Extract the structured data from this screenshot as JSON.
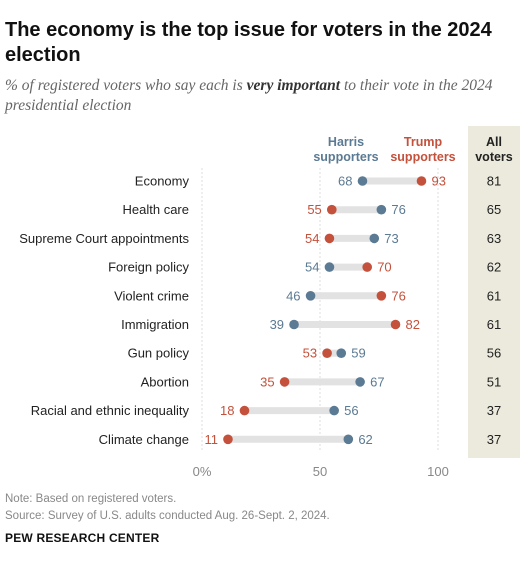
{
  "title": "The economy is the top issue for voters in the 2024 election",
  "subtitle": {
    "before": "% of registered voters who say each is ",
    "emphasis": "very important",
    "after": " to their vote in the 2024 presidential election"
  },
  "colors": {
    "harris": "#5b7a93",
    "trump": "#c4513b",
    "bar": "#e2e2e2",
    "all_voters_bg": "#eceadc"
  },
  "chart_data": {
    "type": "scatter",
    "categories": [
      "Economy",
      "Health care",
      "Supreme Court appointments",
      "Foreign policy",
      "Violent crime",
      "Immigration",
      "Gun policy",
      "Abortion",
      "Racial and ethnic inequality",
      "Climate change"
    ],
    "series": [
      {
        "name": "Harris supporters",
        "legend_lines": [
          "Harris",
          "supporters"
        ],
        "values": [
          68,
          76,
          73,
          54,
          46,
          39,
          59,
          67,
          56,
          62
        ]
      },
      {
        "name": "Trump supporters",
        "legend_lines": [
          "Trump",
          "supporters"
        ],
        "values": [
          93,
          55,
          54,
          70,
          76,
          82,
          53,
          35,
          18,
          11
        ]
      }
    ],
    "all_voters": {
      "header_lines": [
        "All",
        "voters"
      ],
      "values": [
        81,
        65,
        63,
        62,
        61,
        61,
        56,
        51,
        37,
        37
      ]
    },
    "xlim": [
      0,
      100
    ],
    "x_ticks": [
      0,
      50,
      100
    ],
    "x_tick_labels": [
      "0%",
      "50",
      "100"
    ]
  },
  "footer": {
    "note": "Note: Based on registered voters.",
    "source": "Source: Survey of U.S. adults conducted Aug. 26-Sept. 2, 2024.",
    "brand": "PEW RESEARCH CENTER"
  }
}
